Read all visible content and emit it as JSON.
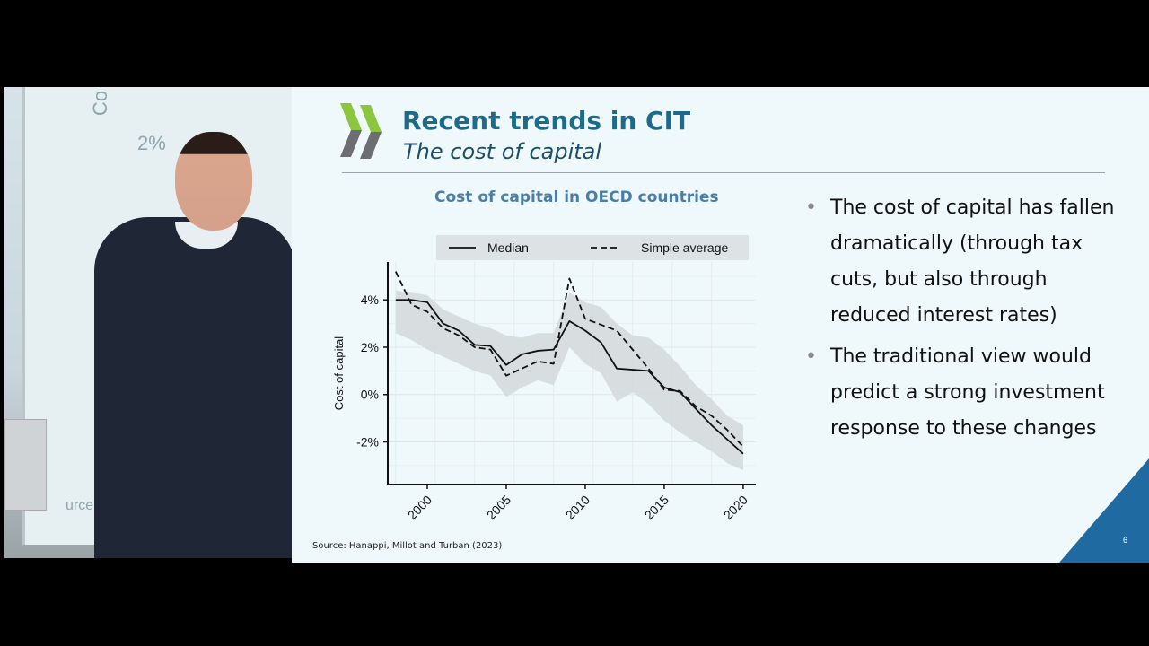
{
  "background_slide": {
    "label_a": "Co",
    "label_b": "2%",
    "label_c": "urce: H"
  },
  "slide": {
    "title": "Recent trends in CIT",
    "subtitle": "The cost of capital",
    "chart_title": "Cost of capital in OECD countries",
    "source": "Source: Hanappi, Millot and Turban (2023)",
    "page_number": "6",
    "bullets": [
      "The cost of capital has fallen dramatically (through tax cuts, but also through reduced interest rates)",
      "The traditional view would predict a strong investment response to these changes"
    ],
    "bullet_symbol": "•",
    "colors": {
      "title": "#1d6a8a",
      "accent": "#1f6aa0",
      "logo_green": "#8cc63f",
      "logo_gray": "#6d6e71"
    }
  },
  "chart_data": {
    "type": "line",
    "title": "",
    "xlabel": "",
    "ylabel": "Cost of capital",
    "xlim": [
      1997.5,
      2020.8
    ],
    "ylim": [
      -3.8,
      5.6
    ],
    "xticks": [
      2000,
      2005,
      2010,
      2015,
      2020
    ],
    "yticks": [
      {
        "value": 4,
        "label": "4%"
      },
      {
        "value": 2,
        "label": "2%"
      },
      {
        "value": 0,
        "label": "0%"
      },
      {
        "value": -2,
        "label": "-2%"
      }
    ],
    "grid": true,
    "legend_position": "top",
    "x": [
      1998,
      1999,
      2000,
      2001,
      2002,
      2003,
      2004,
      2005,
      2006,
      2007,
      2008,
      2009,
      2010,
      2011,
      2012,
      2013,
      2014,
      2015,
      2016,
      2017,
      2018,
      2019,
      2020
    ],
    "series": [
      {
        "name": "Median",
        "style": "solid",
        "values": [
          4.0,
          4.0,
          3.9,
          3.0,
          2.7,
          2.1,
          2.05,
          1.25,
          1.7,
          1.85,
          1.9,
          3.1,
          2.7,
          2.2,
          1.1,
          1.05,
          1.0,
          0.3,
          0.1,
          -0.6,
          -1.3,
          -1.9,
          -2.5
        ]
      },
      {
        "name": "Simple average",
        "style": "dashed",
        "values": [
          5.2,
          3.8,
          3.5,
          2.8,
          2.5,
          2.0,
          1.9,
          0.8,
          1.1,
          1.4,
          1.3,
          4.9,
          3.2,
          2.95,
          2.7,
          1.9,
          1.1,
          0.2,
          0.15,
          -0.5,
          -0.9,
          -1.5,
          -2.2
        ]
      }
    ],
    "band": {
      "upper": [
        4.4,
        4.3,
        4.2,
        3.6,
        3.3,
        3.0,
        2.8,
        2.5,
        2.4,
        2.6,
        2.6,
        4.3,
        3.9,
        3.7,
        3.0,
        2.5,
        2.4,
        1.9,
        1.2,
        0.4,
        -0.2,
        -0.9,
        -1.3
      ],
      "lower": [
        2.6,
        2.3,
        1.9,
        1.6,
        1.3,
        1.0,
        0.8,
        -0.1,
        0.3,
        0.6,
        0.4,
        2.0,
        1.3,
        0.9,
        -0.3,
        0.1,
        -0.4,
        -1.1,
        -1.6,
        -2.0,
        -2.4,
        -2.9,
        -3.2
      ]
    }
  }
}
